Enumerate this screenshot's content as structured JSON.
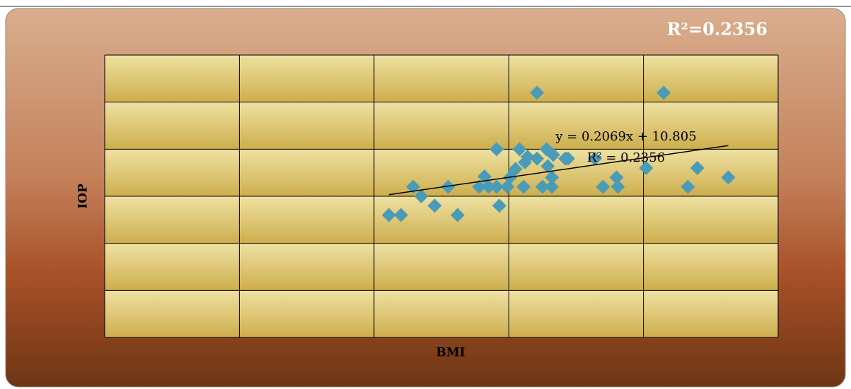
{
  "chart_data": {
    "type": "scatter",
    "title": "R²=0.2356",
    "x_label": "BMI",
    "y_label": "IOP",
    "annotations": [
      "y = 0.2069x + 10.805",
      "R² = 0.2356"
    ],
    "x": [
      21.1,
      22,
      22.9,
      23.5,
      24.5,
      25.5,
      26.2,
      27.8,
      28.2,
      28.5,
      29.1,
      29.1,
      29.3,
      29.9,
      30.1,
      30.5,
      30.8,
      31.1,
      31.2,
      31.4,
      32.1,
      32.1,
      32.5,
      32.8,
      32.9,
      33.2,
      33.2,
      33.3,
      34.2,
      34.4,
      36.4,
      37,
      38,
      38.1,
      40.2,
      41.5,
      43.3,
      44,
      46.3
    ],
    "values": [
      13,
      13,
      16,
      15,
      14,
      16,
      13,
      16,
      17.1,
      16,
      16,
      20,
      14,
      16,
      17,
      17.9,
      20,
      16,
      18.6,
      19.2,
      26,
      19,
      16,
      20,
      18.2,
      17,
      16,
      19.4,
      19,
      19,
      19,
      16,
      17,
      16,
      18,
      26,
      16,
      18,
      17
    ],
    "color": "#4a9bb8",
    "trendline": {
      "slope": 0.2069,
      "intercept": 10.805,
      "color": "#000000"
    },
    "xlim": [
      0,
      50
    ],
    "xticks": [
      0,
      10,
      20,
      30,
      40,
      50
    ],
    "ylim": [
      0,
      30
    ],
    "yticks": [
      0,
      5,
      10,
      15,
      20,
      25,
      30
    ],
    "grid": true
  }
}
